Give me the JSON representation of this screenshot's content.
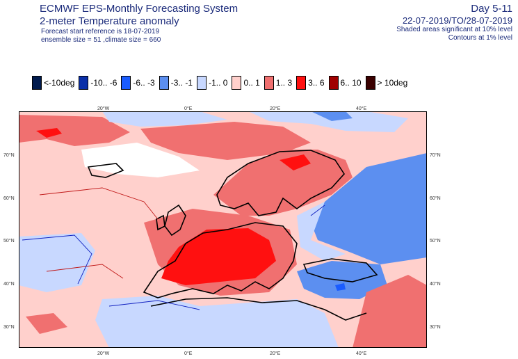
{
  "header": {
    "title": "ECMWF EPS-Monthly Forecasting System",
    "subtitle": "2-meter Temperature anomaly",
    "forecast_ref": "Forecast start reference is 18-07-2019",
    "ensemble": "ensemble size = 51  ,climate size = 660",
    "day_range": "Day 5-11",
    "period": "22-07-2019/TO/28-07-2019",
    "note_shaded": "Shaded areas significant at 10% level",
    "note_contours": "Contours at 1% level"
  },
  "legend": [
    {
      "label": "<-10deg",
      "color": "#001a4d"
    },
    {
      "label": "-10.. -6",
      "color": "#0a2fa8"
    },
    {
      "label": "-6.. -3",
      "color": "#1a5cff"
    },
    {
      "label": "-3.. -1",
      "color": "#5c8ff0"
    },
    {
      "label": "-1.. 0",
      "color": "#c8d8ff"
    },
    {
      "label": "0.. 1",
      "color": "#ffd0cc"
    },
    {
      "label": "1.. 3",
      "color": "#f07070"
    },
    {
      "label": "3.. 6",
      "color": "#ff1010"
    },
    {
      "label": "6.. 10",
      "color": "#a00000"
    },
    {
      "label": "> 10deg",
      "color": "#3a0000"
    }
  ],
  "axes": {
    "lon_labels": [
      "20°W",
      "0°E",
      "20°E",
      "40°E"
    ],
    "lat_labels": [
      "70°N",
      "60°N",
      "50°N",
      "40°N",
      "30°N"
    ]
  },
  "colors": {
    "ocean_light": "#ffd0cc",
    "anom_mid": "#f07070",
    "anom_high": "#ff1010",
    "cold_light": "#c8d8ff",
    "cold_mid": "#5c8ff0",
    "cold_strong": "#1a5cff",
    "coast": "#000000",
    "contour_red": "#c01818",
    "contour_blue": "#1020c0"
  }
}
